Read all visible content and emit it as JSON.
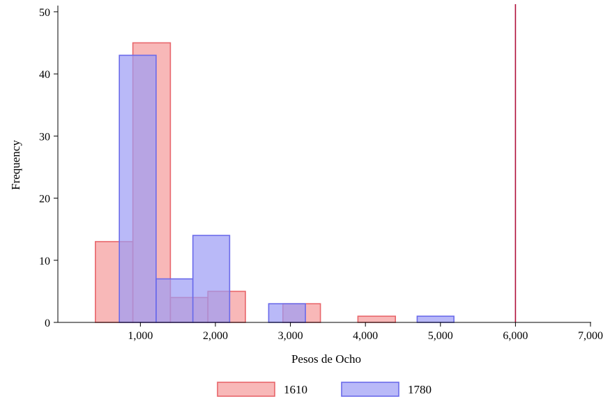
{
  "chart_data": {
    "type": "bar",
    "subtype": "overlaid-histogram",
    "xlabel": "Pesos de Ocho",
    "ylabel": "Frequency",
    "xlim": [
      -100,
      7000
    ],
    "ylim": [
      0,
      51
    ],
    "xticks": [
      1000,
      2000,
      3000,
      4000,
      5000,
      6000,
      7000
    ],
    "xtick_labels": [
      "1,000",
      "2,000",
      "3,000",
      "4,000",
      "5,000",
      "6,000",
      "7,000"
    ],
    "yticks": [
      0,
      10,
      20,
      30,
      40,
      50
    ],
    "ytick_labels": [
      "0",
      "10",
      "20",
      "30",
      "40",
      "50"
    ],
    "grid": false,
    "legend_position": "bottom",
    "reference_line": {
      "x": 6000,
      "color": "#b0103a"
    },
    "series": [
      {
        "name": "1610",
        "fill": "#f59a9a",
        "stroke": "#e8666b",
        "bins": [
          {
            "x0": 400,
            "x1": 900,
            "value": 13
          },
          {
            "x0": 900,
            "x1": 1400,
            "value": 45
          },
          {
            "x0": 1400,
            "x1": 1900,
            "value": 4
          },
          {
            "x0": 1900,
            "x1": 2400,
            "value": 5
          },
          {
            "x0": 2900,
            "x1": 3400,
            "value": 3
          },
          {
            "x0": 3900,
            "x1": 4400,
            "value": 1
          }
        ]
      },
      {
        "name": "1780",
        "fill": "#9b9bf5",
        "stroke": "#6a6aea",
        "bins": [
          {
            "x0": 720,
            "x1": 1210,
            "value": 43
          },
          {
            "x0": 1210,
            "x1": 1700,
            "value": 7
          },
          {
            "x0": 1700,
            "x1": 2190,
            "value": 14
          },
          {
            "x0": 2710,
            "x1": 3200,
            "value": 3
          },
          {
            "x0": 4690,
            "x1": 5180,
            "value": 1
          }
        ]
      }
    ]
  }
}
